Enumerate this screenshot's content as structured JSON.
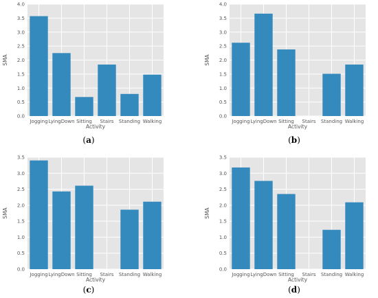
{
  "chart_data": [
    {
      "type": "bar",
      "caption": "a",
      "categories": [
        "Jogging",
        "LyingDown",
        "Sitting",
        "Stairs",
        "Standing",
        "Walking"
      ],
      "values": [
        3.57,
        2.25,
        0.68,
        1.84,
        0.79,
        1.48
      ],
      "xlabel": "Activity",
      "ylabel": "SMA",
      "ylim": [
        0,
        4.0
      ],
      "yticks": [
        "0.0",
        "0.5",
        "1.0",
        "1.5",
        "2.0",
        "2.5",
        "3.0",
        "3.5",
        "4.0"
      ],
      "grid": true,
      "bar_color": "#348abd",
      "background_color": "#e5e5e5"
    },
    {
      "type": "bar",
      "caption": "b",
      "categories": [
        "Jogging",
        "LyingDown",
        "Sitting",
        "Stairs",
        "Standing",
        "Walking"
      ],
      "values": [
        2.62,
        3.66,
        2.38,
        0,
        1.51,
        1.84
      ],
      "xlabel": "Activity",
      "ylabel": "SMA",
      "ylim": [
        0,
        4.0
      ],
      "yticks": [
        "0.0",
        "0.5",
        "1.0",
        "1.5",
        "2.0",
        "2.5",
        "3.0",
        "3.5",
        "4.0"
      ],
      "grid": true,
      "bar_color": "#348abd",
      "background_color": "#e5e5e5"
    },
    {
      "type": "bar",
      "caption": "c",
      "categories": [
        "Jogging",
        "LyingDown",
        "Sitting",
        "Stairs",
        "Standing",
        "Walking"
      ],
      "values": [
        3.4,
        2.43,
        2.61,
        0,
        1.86,
        2.11
      ],
      "xlabel": "Activity",
      "ylabel": "SMA",
      "ylim": [
        0,
        3.5
      ],
      "yticks": [
        "0.0",
        "0.5",
        "1.0",
        "1.5",
        "2.0",
        "2.5",
        "3.0",
        "3.5"
      ],
      "grid": true,
      "bar_color": "#348abd",
      "background_color": "#e5e5e5"
    },
    {
      "type": "bar",
      "caption": "d",
      "categories": [
        "Jogging",
        "LyingDown",
        "Sitting",
        "Stairs",
        "Standing",
        "Walking"
      ],
      "values": [
        3.18,
        2.76,
        2.35,
        0,
        1.23,
        2.09
      ],
      "xlabel": "Activity",
      "ylabel": "SMA",
      "ylim": [
        0,
        3.5
      ],
      "yticks": [
        "0.0",
        "0.5",
        "1.0",
        "1.5",
        "2.0",
        "2.5",
        "3.0",
        "3.5"
      ],
      "grid": true,
      "bar_color": "#348abd",
      "background_color": "#e5e5e5"
    }
  ]
}
